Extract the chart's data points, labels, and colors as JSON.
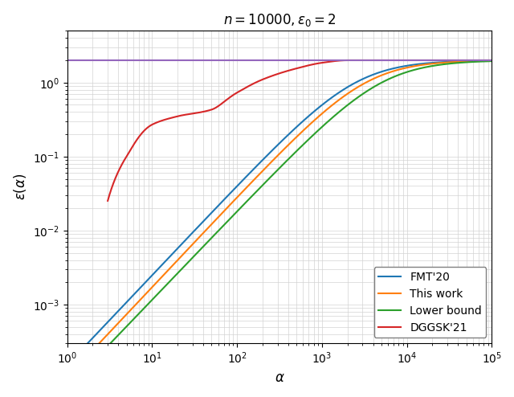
{
  "title": "$n = 10000, \\varepsilon_0 = 2$",
  "xlabel": "$\\alpha$",
  "ylabel": "$\\varepsilon(\\alpha)$",
  "n": 10000,
  "eps0": 2.0,
  "purple_line_y": 2.0,
  "colors": {
    "fmt20": "#1f77b4",
    "thiswork": "#ff7f0e",
    "lowerbound": "#2ca02c",
    "dggsk21": "#d62728",
    "purple": "#9467bd"
  },
  "legend_labels": [
    "FMT'20",
    "This work",
    "Lower bound",
    "DGGSK'21"
  ],
  "legend_loc": "lower right",
  "xlim": [
    1,
    100000
  ],
  "ylim": [
    0.0003,
    5.0
  ]
}
